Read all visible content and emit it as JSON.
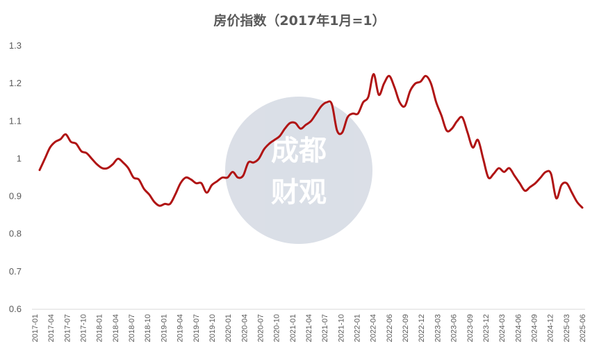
{
  "chart_data": {
    "type": "line",
    "title": "房价指数（2017年1月=1）",
    "xlabel": "",
    "ylabel": "",
    "ylim": [
      0.6,
      1.3
    ],
    "yticks": [
      "0.6",
      "0.7",
      "0.8",
      "0.9",
      "1",
      "1.1",
      "1.2",
      "1.3"
    ],
    "grid": false,
    "line_color": "#b01414",
    "x_tick_labels": [
      "2017-01",
      "2017-04",
      "2017-07",
      "2017-10",
      "2018-01",
      "2018-04",
      "2018-07",
      "2018-10",
      "2019-01",
      "2019-04",
      "2019-07",
      "2019-10",
      "2020-01",
      "2020-04",
      "2020-07",
      "2020-10",
      "2021-01",
      "2021-04",
      "2021-07",
      "2021-10",
      "2022-01",
      "2022-04",
      "2022-06",
      "2022-09",
      "2022-12",
      "2023-03",
      "2023-06",
      "2023-09",
      "2023-12",
      "2024-03",
      "2024-06",
      "2024-09",
      "2024-12",
      "2025-03",
      "2025-06"
    ],
    "series": [
      {
        "values": [
          0.97,
          1.0,
          1.03,
          1.045,
          1.052,
          1.065,
          1.045,
          1.04,
          1.02,
          1.015,
          1.0,
          0.985,
          0.975,
          0.975,
          0.985,
          1.0,
          0.99,
          0.975,
          0.95,
          0.945,
          0.92,
          0.905,
          0.885,
          0.875,
          0.88,
          0.88,
          0.905,
          0.935,
          0.95,
          0.945,
          0.935,
          0.935,
          0.91,
          0.93,
          0.94,
          0.95,
          0.95,
          0.965,
          0.95,
          0.955,
          0.99,
          0.99,
          1.0,
          1.025,
          1.04,
          1.05,
          1.06,
          1.08,
          1.095,
          1.095,
          1.08,
          1.09,
          1.1,
          1.12,
          1.14,
          1.15,
          1.145,
          1.075,
          1.07,
          1.11,
          1.12,
          1.12,
          1.15,
          1.165,
          1.225,
          1.17,
          1.2,
          1.22,
          1.19,
          1.15,
          1.14,
          1.18,
          1.2,
          1.205,
          1.22,
          1.2,
          1.15,
          1.115,
          1.075,
          1.08,
          1.1,
          1.11,
          1.07,
          1.03,
          1.05,
          1.0,
          0.95,
          0.96,
          0.975,
          0.965,
          0.975,
          0.955,
          0.935,
          0.915,
          0.925,
          0.935,
          0.95,
          0.965,
          0.96,
          0.895,
          0.93,
          0.935,
          0.91,
          0.885,
          0.87
        ]
      }
    ]
  },
  "watermark": {
    "line1": "成都",
    "line2": "财观"
  }
}
